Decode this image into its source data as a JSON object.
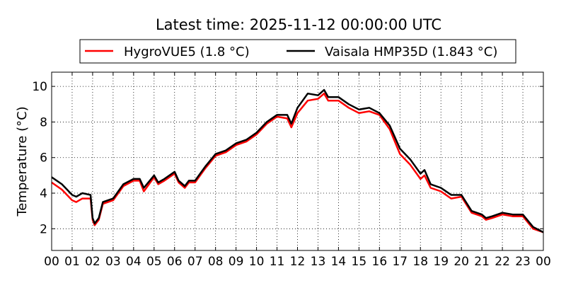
{
  "chart_data": {
    "type": "line",
    "title": "Latest time: 2025-11-12 00:00:00 UTC",
    "xlabel": "",
    "ylabel": "Temperature (°C)",
    "xlim": [
      0,
      24
    ],
    "ylim": [
      0.78,
      10.8
    ],
    "grid": true,
    "legend_position": "top-center",
    "xticks": [
      0,
      1,
      2,
      3,
      4,
      5,
      6,
      7,
      8,
      9,
      10,
      11,
      12,
      13,
      14,
      15,
      16,
      17,
      18,
      19,
      20,
      21,
      22,
      23,
      24
    ],
    "xtick_labels": [
      "00",
      "01",
      "02",
      "03",
      "04",
      "05",
      "06",
      "07",
      "08",
      "09",
      "10",
      "11",
      "12",
      "13",
      "14",
      "15",
      "16",
      "17",
      "18",
      "19",
      "20",
      "21",
      "22",
      "23",
      "00"
    ],
    "yticks": [
      2,
      4,
      6,
      8,
      10
    ],
    "ytick_labels": [
      "2",
      "4",
      "6",
      "8",
      "10"
    ],
    "series": [
      {
        "name": "HygroVUE5 (1.8 °C)",
        "color": "#ff0000",
        "x": [
          0,
          0.5,
          1,
          1.2,
          1.5,
          1.9,
          2,
          2.1,
          2.3,
          2.5,
          3,
          3.5,
          4,
          4.3,
          4.5,
          5,
          5.2,
          5.5,
          6,
          6.2,
          6.5,
          6.7,
          7,
          7.5,
          8,
          8.5,
          9,
          9.5,
          10,
          10.5,
          11,
          11.5,
          11.7,
          12,
          12.5,
          13,
          13.3,
          13.5,
          14,
          14.5,
          15,
          15.5,
          16,
          16.5,
          17,
          17.5,
          18,
          18.2,
          18.5,
          19,
          19.5,
          20,
          20.5,
          21,
          21.2,
          21.5,
          22,
          22.5,
          23,
          23.5,
          24
        ],
        "y": [
          4.6,
          4.2,
          3.6,
          3.5,
          3.7,
          3.7,
          2.5,
          2.2,
          2.5,
          3.4,
          3.6,
          4.4,
          4.7,
          4.7,
          4.1,
          4.9,
          4.5,
          4.7,
          5.1,
          4.6,
          4.3,
          4.6,
          4.6,
          5.4,
          6.1,
          6.3,
          6.7,
          6.9,
          7.3,
          7.9,
          8.3,
          8.2,
          7.7,
          8.5,
          9.2,
          9.3,
          9.6,
          9.2,
          9.2,
          8.8,
          8.5,
          8.6,
          8.4,
          7.6,
          6.2,
          5.6,
          4.8,
          5.0,
          4.3,
          4.1,
          3.7,
          3.8,
          2.9,
          2.7,
          2.5,
          2.6,
          2.8,
          2.7,
          2.7,
          2.0,
          1.8
        ]
      },
      {
        "name": "Vaisala HMP35D (1.843 °C)",
        "color": "#000000",
        "x": [
          0,
          0.5,
          1,
          1.2,
          1.5,
          1.9,
          2,
          2.1,
          2.3,
          2.5,
          3,
          3.5,
          4,
          4.3,
          4.5,
          5,
          5.2,
          5.5,
          6,
          6.2,
          6.5,
          6.7,
          7,
          7.5,
          8,
          8.5,
          9,
          9.5,
          10,
          10.5,
          11,
          11.5,
          11.7,
          12,
          12.5,
          13,
          13.3,
          13.5,
          14,
          14.5,
          15,
          15.5,
          16,
          16.5,
          17,
          17.5,
          18,
          18.2,
          18.5,
          19,
          19.5,
          20,
          20.5,
          21,
          21.2,
          21.5,
          22,
          22.5,
          23,
          23.5,
          24
        ],
        "y": [
          4.9,
          4.5,
          3.9,
          3.8,
          4.0,
          3.9,
          2.6,
          2.3,
          2.6,
          3.5,
          3.7,
          4.5,
          4.8,
          4.8,
          4.3,
          5.0,
          4.6,
          4.8,
          5.2,
          4.7,
          4.4,
          4.7,
          4.7,
          5.5,
          6.2,
          6.4,
          6.8,
          7.0,
          7.4,
          8.0,
          8.4,
          8.4,
          7.9,
          8.8,
          9.6,
          9.5,
          9.8,
          9.4,
          9.4,
          9.0,
          8.7,
          8.8,
          8.5,
          7.8,
          6.5,
          5.9,
          5.1,
          5.3,
          4.5,
          4.3,
          3.9,
          3.9,
          3.0,
          2.8,
          2.6,
          2.7,
          2.9,
          2.8,
          2.8,
          2.1,
          1.8
        ]
      }
    ]
  }
}
